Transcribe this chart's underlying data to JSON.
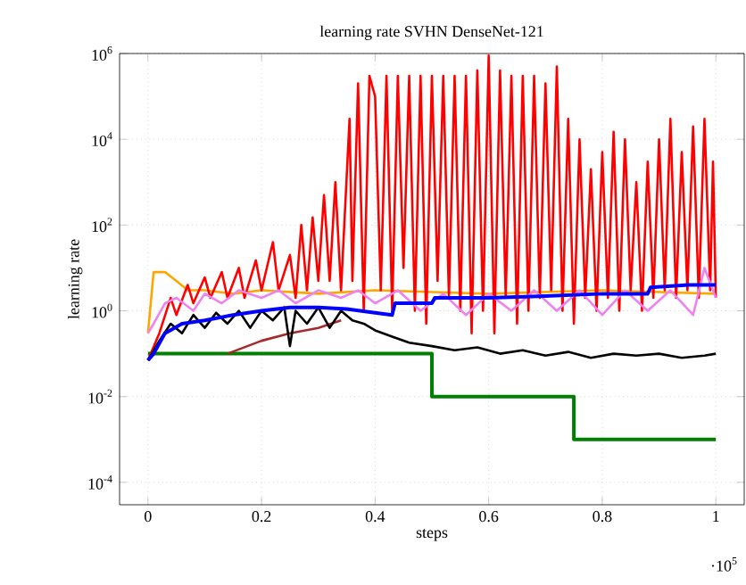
{
  "chart_data": {
    "type": "line",
    "title": "learning rate SVHN DenseNet-121",
    "xlabel": "steps",
    "ylabel": "learning rate",
    "log": "y",
    "grid": true,
    "marker": "none",
    "line_style": "solid",
    "xlim": [
      -0.05,
      1.05
    ],
    "ylim": [
      3e-05,
      1000000
    ],
    "xticks": [
      0,
      0.2,
      0.4,
      0.6,
      0.8,
      1
    ],
    "yticks": [
      {
        "value": 0.0001,
        "label": "10$^{-4}$"
      },
      {
        "value": 0.01,
        "label": "10$^{-2}$"
      },
      {
        "value": 1,
        "label": "10$^{0}$"
      },
      {
        "value": 100,
        "label": "10$^{2}$"
      },
      {
        "value": 10000,
        "label": "10$^{4}$"
      },
      {
        "value": 1000000,
        "label": "10$^{6}$"
      }
    ],
    "annotations": [
      "·10$^{5}$"
    ],
    "series": [
      {
        "type": "step",
        "color": "#008000",
        "x": [
          0,
          0.5,
          0.75,
          1
        ],
        "values": [
          0.1,
          0.01,
          0.001,
          0.001
        ]
      },
      {
        "color": "#a52a2a",
        "x": [
          0.14,
          0.2,
          0.25,
          0.3,
          0.34
        ],
        "values": [
          0.1,
          0.2,
          0.3,
          0.4,
          0.6
        ]
      },
      {
        "color": "#ffa500",
        "x": [
          0,
          0.01,
          0.03,
          0.05,
          0.07,
          0.1,
          0.15,
          0.2,
          0.3,
          0.4,
          0.6,
          0.8,
          1
        ],
        "values": [
          0.3,
          8,
          8,
          5,
          3,
          3,
          2.5,
          3,
          2.5,
          3,
          2.5,
          3,
          2.5
        ]
      },
      {
        "color": "#ff0000",
        "x": [
          0,
          0.02,
          0.04,
          0.05,
          0.07,
          0.08,
          0.1,
          0.11,
          0.13,
          0.14,
          0.16,
          0.17,
          0.19,
          0.2,
          0.22,
          0.23,
          0.25,
          0.26,
          0.27,
          0.28,
          0.29,
          0.3,
          0.31,
          0.32,
          0.33,
          0.34,
          0.355,
          0.36,
          0.37,
          0.38,
          0.39,
          0.4,
          0.41,
          0.42,
          0.43,
          0.44,
          0.45,
          0.46,
          0.47,
          0.48,
          0.49,
          0.5,
          0.51,
          0.52,
          0.53,
          0.54,
          0.55,
          0.56,
          0.57,
          0.58,
          0.59,
          0.6,
          0.61,
          0.62,
          0.63,
          0.64,
          0.65,
          0.66,
          0.67,
          0.68,
          0.69,
          0.7,
          0.71,
          0.72,
          0.73,
          0.74,
          0.75,
          0.76,
          0.77,
          0.78,
          0.79,
          0.8,
          0.81,
          0.82,
          0.83,
          0.84,
          0.85,
          0.86,
          0.87,
          0.88,
          0.89,
          0.9,
          0.91,
          0.92,
          0.93,
          0.94,
          0.95,
          0.96,
          0.97,
          0.98,
          0.99,
          0.995,
          1
        ],
        "values": [
          0.07,
          0.3,
          2,
          0.8,
          4,
          1.5,
          6,
          2,
          8,
          2,
          10,
          2,
          15,
          3,
          40,
          3,
          20,
          2,
          100,
          3,
          150,
          5,
          500,
          5,
          1000,
          3,
          30000,
          5,
          200000,
          1,
          300000,
          100000,
          3,
          300000,
          1,
          300000,
          10,
          300000,
          1,
          300000,
          0.5,
          300000,
          5,
          300000,
          2,
          300000,
          1,
          300000,
          0.3,
          400000,
          1,
          900000,
          0.3,
          400000,
          2,
          300000,
          0.5,
          300000,
          1,
          300000,
          2,
          200000,
          3,
          500000,
          1,
          30000,
          0.5,
          10000,
          2,
          2000,
          1,
          5000,
          2,
          15000,
          1,
          10000,
          3,
          1000,
          1,
          3000,
          2,
          10000,
          3,
          30000,
          2,
          5000,
          3,
          20000,
          2,
          30000,
          3,
          3000,
          2
        ]
      },
      {
        "color": "#ee82ee",
        "x": [
          0,
          0.01,
          0.03,
          0.05,
          0.08,
          0.1,
          0.13,
          0.16,
          0.2,
          0.23,
          0.26,
          0.3,
          0.34,
          0.37,
          0.4,
          0.44,
          0.48,
          0.52,
          0.56,
          0.6,
          0.64,
          0.68,
          0.72,
          0.76,
          0.8,
          0.84,
          0.88,
          0.92,
          0.96,
          0.98,
          1
        ],
        "values": [
          0.3,
          0.5,
          1.5,
          2,
          1,
          2.5,
          1.5,
          3,
          2,
          3,
          1.5,
          3,
          2,
          3,
          1.5,
          3,
          1,
          2.5,
          0.8,
          2.5,
          1,
          3,
          1,
          3,
          0.8,
          3,
          1,
          3,
          0.8,
          10,
          2
        ]
      },
      {
        "color": "#000000",
        "x": [
          0,
          0.02,
          0.04,
          0.06,
          0.08,
          0.1,
          0.12,
          0.14,
          0.16,
          0.18,
          0.2,
          0.22,
          0.24,
          0.25,
          0.26,
          0.28,
          0.3,
          0.32,
          0.34,
          0.36,
          0.38,
          0.4,
          0.43,
          0.46,
          0.5,
          0.54,
          0.58,
          0.62,
          0.66,
          0.7,
          0.74,
          0.78,
          0.82,
          0.86,
          0.9,
          0.94,
          0.98,
          1
        ],
        "values": [
          0.07,
          0.2,
          0.5,
          0.3,
          0.8,
          0.4,
          0.9,
          0.5,
          1,
          0.4,
          1,
          0.6,
          1.2,
          0.15,
          1,
          0.5,
          1.2,
          0.4,
          1,
          0.6,
          0.5,
          0.35,
          0.25,
          0.18,
          0.15,
          0.12,
          0.14,
          0.1,
          0.12,
          0.09,
          0.11,
          0.08,
          0.1,
          0.09,
          0.1,
          0.08,
          0.09,
          0.1
        ]
      },
      {
        "color": "#0000ff",
        "x": [
          0,
          0.01,
          0.03,
          0.06,
          0.1,
          0.15,
          0.2,
          0.25,
          0.3,
          0.35,
          0.4,
          0.43,
          0.435,
          0.5,
          0.505,
          0.6,
          0.7,
          0.8,
          0.88,
          0.885,
          0.95,
          1
        ],
        "values": [
          0.07,
          0.1,
          0.3,
          0.5,
          0.6,
          0.8,
          1,
          1.2,
          1.2,
          1.1,
          0.9,
          0.8,
          1.5,
          1.5,
          2,
          2,
          2.2,
          2.5,
          2.5,
          3.5,
          4,
          4
        ]
      }
    ]
  }
}
